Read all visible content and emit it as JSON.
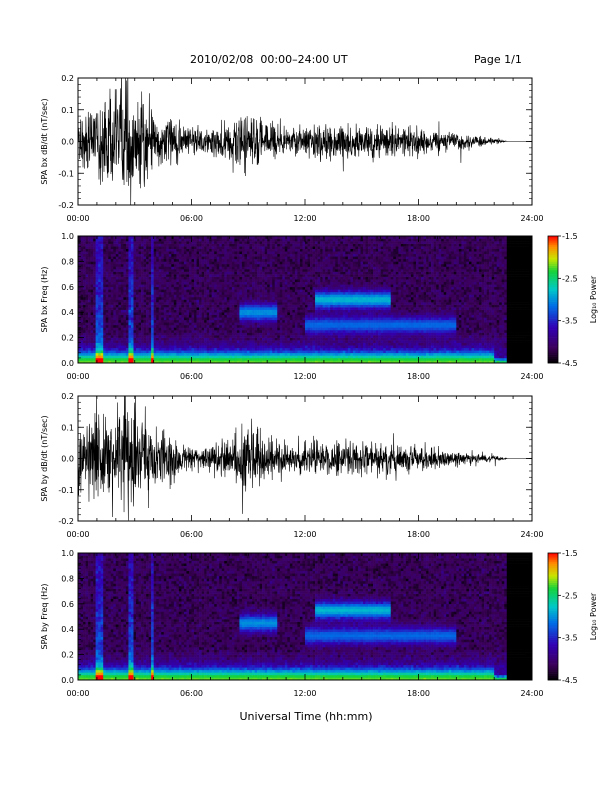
{
  "header": {
    "title": "2010/02/08  00:00–24:00 UT",
    "page": "Page 1/1"
  },
  "xaxis": {
    "title": "Universal Time (hh:mm)",
    "ticks": [
      "00:00",
      "06:00",
      "12:00",
      "18:00",
      "24:00"
    ],
    "range_hours": [
      0,
      24
    ]
  },
  "chart_data": [
    {
      "type": "line",
      "ylabel": "SPA bx dB/dt (nT/sec)",
      "ylim": [
        -0.2,
        0.2
      ],
      "yticks": [
        "-0.2",
        "-0.1",
        "0.0",
        "0.1",
        "0.2"
      ],
      "xlim": [
        0,
        24
      ],
      "series": [
        {
          "x": [
            0,
            1,
            2,
            3,
            4,
            5,
            6,
            7,
            8,
            9,
            10,
            11,
            12,
            13,
            14,
            15,
            16,
            17,
            18,
            19,
            20,
            21,
            22,
            22.7,
            24
          ],
          "amplitude": [
            0.1,
            0.14,
            0.2,
            0.2,
            0.12,
            0.08,
            0.05,
            0.05,
            0.07,
            0.12,
            0.08,
            0.05,
            0.06,
            0.06,
            0.07,
            0.06,
            0.06,
            0.05,
            0.05,
            0.04,
            0.03,
            0.02,
            0.015,
            0.0,
            0.0
          ],
          "color": "#000000"
        }
      ]
    },
    {
      "type": "heatmap",
      "ylabel": "SPA bx Freq (Hz)",
      "ylim": [
        0.0,
        1.0
      ],
      "yticks": [
        "0.0",
        "0.2",
        "0.4",
        "0.6",
        "0.8",
        "1.0"
      ],
      "xlim": [
        0,
        24
      ],
      "data_end_hour": 22.7,
      "colorbar": {
        "label": "Log₁₀ Power",
        "min": -4.5,
        "max": -1.5,
        "ticks": [
          "-1.5",
          "-2.5",
          "-3.5",
          "-4.5"
        ]
      },
      "spectral_bands": [
        {
          "hours": [
            12.5,
            16.5
          ],
          "freq_hz": 0.5,
          "log_power": -2.6
        },
        {
          "hours": [
            8.5,
            10.5
          ],
          "freq_hz": 0.4,
          "log_power": -2.8
        },
        {
          "hours": [
            12.0,
            20.0
          ],
          "freq_hz": 0.3,
          "log_power": -3.0
        },
        {
          "hours": [
            0.0,
            22.0
          ],
          "freq_hz": 0.02,
          "log_power": -2.2
        }
      ]
    },
    {
      "type": "line",
      "ylabel": "SPA by dB/dt (nT/sec)",
      "ylim": [
        -0.2,
        0.2
      ],
      "yticks": [
        "-0.2",
        "-0.1",
        "0.0",
        "0.1",
        "0.2"
      ],
      "xlim": [
        0,
        24
      ],
      "series": [
        {
          "x": [
            0,
            1,
            2,
            3,
            4,
            5,
            6,
            7,
            8,
            9,
            10,
            11,
            12,
            13,
            14,
            15,
            16,
            17,
            18,
            19,
            20,
            21,
            22,
            22.7,
            24
          ],
          "amplitude": [
            0.12,
            0.15,
            0.2,
            0.2,
            0.14,
            0.08,
            0.05,
            0.05,
            0.07,
            0.14,
            0.08,
            0.05,
            0.05,
            0.06,
            0.06,
            0.06,
            0.06,
            0.05,
            0.05,
            0.04,
            0.03,
            0.02,
            0.015,
            0.0,
            0.0
          ],
          "color": "#000000"
        }
      ]
    },
    {
      "type": "heatmap",
      "ylabel": "SPA by Freq (Hz)",
      "ylim": [
        0.0,
        1.0
      ],
      "yticks": [
        "0.0",
        "0.2",
        "0.4",
        "0.6",
        "0.8",
        "1.0"
      ],
      "xlim": [
        0,
        24
      ],
      "data_end_hour": 22.7,
      "colorbar": {
        "label": "Log₁₀ Power",
        "min": -4.5,
        "max": -1.5,
        "ticks": [
          "-1.5",
          "-2.5",
          "-3.5",
          "-4.5"
        ]
      },
      "spectral_bands": [
        {
          "hours": [
            12.5,
            16.5
          ],
          "freq_hz": 0.55,
          "log_power": -2.6
        },
        {
          "hours": [
            8.5,
            10.5
          ],
          "freq_hz": 0.45,
          "log_power": -2.8
        },
        {
          "hours": [
            12.0,
            20.0
          ],
          "freq_hz": 0.35,
          "log_power": -3.0
        },
        {
          "hours": [
            0.0,
            22.0
          ],
          "freq_hz": 0.02,
          "log_power": -2.2
        }
      ]
    }
  ]
}
